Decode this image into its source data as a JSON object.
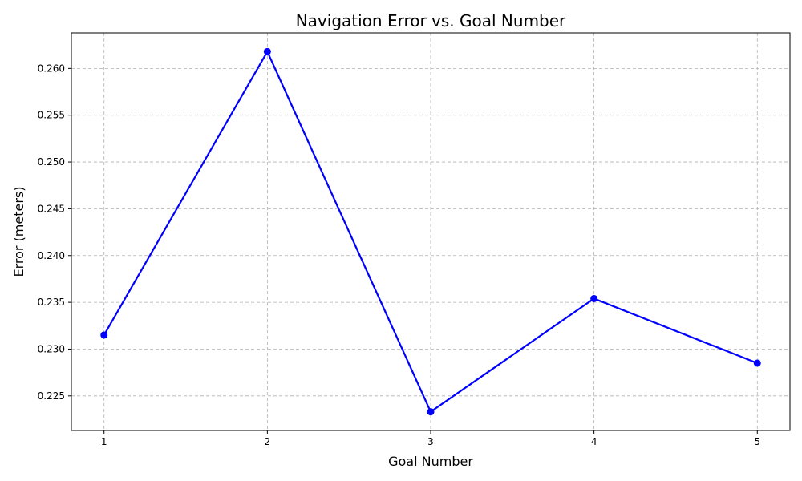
{
  "chart_data": {
    "type": "line",
    "title": "Navigation Error vs. Goal Number",
    "xlabel": "Goal Number",
    "ylabel": "Error (meters)",
    "x": [
      1,
      2,
      3,
      4,
      5
    ],
    "x_ticks": [
      "1",
      "2",
      "3",
      "4",
      "5"
    ],
    "y_ticks": [
      "0.225",
      "0.230",
      "0.235",
      "0.240",
      "0.245",
      "0.250",
      "0.255",
      "0.260"
    ],
    "xlim": [
      0.8,
      5.2
    ],
    "ylim": [
      0.2213,
      0.2638
    ],
    "grid": true,
    "legend": "none",
    "series": [
      {
        "values": [
          0.2315,
          0.2618,
          0.2233,
          0.2354,
          0.2285
        ],
        "color": "#0000ff",
        "marker": "circle"
      }
    ]
  },
  "colors": {
    "grid": "#b0b0b0",
    "axis": "#000000",
    "line": "#0000ff"
  }
}
